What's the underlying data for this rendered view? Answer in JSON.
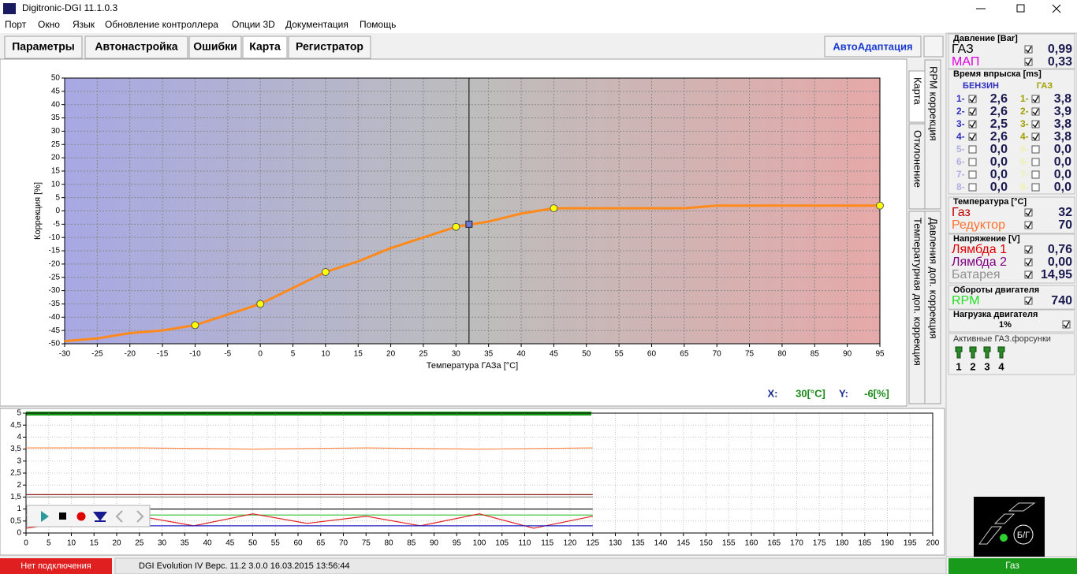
{
  "window": {
    "title": "Digitronic-DGI  11.1.0.3"
  },
  "menu": [
    "Порт",
    "Окно",
    "Язык",
    "Обновление контроллера",
    "Опции 3D",
    "Документация",
    "Помощь"
  ],
  "tabs": [
    "Параметры",
    "Автонастройка",
    "Ошибки",
    "Карта",
    "Регистратор"
  ],
  "auto_button": "АвтоАдаптация",
  "side_tabs": [
    "Карта",
    "RPM коррекция",
    "Отклонение",
    "Давления доп. коррекция",
    "Температурная доп. коррекция"
  ],
  "chart_data": [
    {
      "type": "line",
      "xlabel": "Температура ГАЗа [°C]",
      "ylabel": "Коррекция [%]",
      "xlim": [
        -30,
        95
      ],
      "ylim": [
        -50,
        50
      ],
      "xticks": [
        -30,
        -25,
        -20,
        -15,
        -10,
        -5,
        0,
        5,
        10,
        15,
        20,
        25,
        30,
        35,
        40,
        45,
        50,
        55,
        60,
        65,
        70,
        75,
        80,
        85,
        90,
        95
      ],
      "yticks": [
        -50,
        -45,
        -40,
        -35,
        -30,
        -25,
        -20,
        -15,
        -10,
        -5,
        0,
        5,
        10,
        15,
        20,
        25,
        30,
        35,
        40,
        45,
        50
      ],
      "grid": true,
      "background_colors": [
        "#a8a8e4",
        "#bdbdbd",
        "#e6a9a9"
      ],
      "series": [
        {
          "color": "#ff8a1c",
          "x": [
            -30,
            -25,
            -20,
            -15,
            -10,
            -5,
            0,
            5,
            10,
            15,
            20,
            25,
            30,
            35,
            40,
            45,
            50,
            55,
            60,
            65,
            70,
            75,
            80,
            85,
            90,
            95
          ],
          "values": [
            -49,
            -48,
            -46,
            -45,
            -43,
            -39,
            -35,
            -29,
            -23,
            -19,
            -14,
            -10,
            -6,
            -4,
            -1,
            1,
            1,
            1,
            1,
            1,
            2,
            2,
            2,
            2,
            2,
            2
          ]
        },
        {
          "color": "#ffff00",
          "marker": "circle",
          "line": false,
          "x": [
            -10,
            0,
            10,
            30,
            45,
            95
          ],
          "values": [
            -43,
            -35,
            -23,
            -6,
            1,
            2
          ]
        }
      ],
      "cursor": {
        "x": 32,
        "y": -5
      },
      "readout": [
        "X:",
        "30[°C]",
        "Y:",
        "-6[%]"
      ]
    },
    {
      "type": "line",
      "xlim": [
        0,
        200
      ],
      "ylim": [
        0,
        5
      ],
      "xticks": [
        0,
        5,
        10,
        15,
        20,
        25,
        30,
        35,
        40,
        45,
        50,
        55,
        60,
        65,
        70,
        75,
        80,
        85,
        90,
        95,
        100,
        105,
        110,
        115,
        120,
        125,
        130,
        135,
        140,
        145,
        150,
        155,
        160,
        165,
        170,
        175,
        180,
        185,
        190,
        195,
        200
      ],
      "yticks": [
        0,
        {
          "value": 0.5,
          "label": "0,5"
        },
        1,
        {
          "value": 1.5,
          "label": "1,5"
        },
        2,
        {
          "value": 2.5,
          "label": "2,5"
        },
        3,
        {
          "value": 3.5,
          "label": "3,5"
        },
        4,
        {
          "value": 4.5,
          "label": "4,5"
        },
        5
      ],
      "grid": true,
      "series": [
        {
          "color": "#ff8a4a",
          "x": [
            0,
            25,
            50,
            75,
            100,
            125
          ],
          "values": [
            3.55,
            3.55,
            3.5,
            3.55,
            3.5,
            3.55
          ]
        },
        {
          "color": "#8b1a1a",
          "x": [
            0,
            25,
            50,
            75,
            100,
            125
          ],
          "values": [
            1.6,
            1.6,
            1.6,
            1.6,
            1.6,
            1.6
          ]
        },
        {
          "color": "#909090",
          "x": [
            0,
            25,
            50,
            75,
            100,
            125
          ],
          "values": [
            1.5,
            1.5,
            1.5,
            1.5,
            1.5,
            1.5
          ]
        },
        {
          "color": "#202020",
          "x": [
            0,
            25,
            50,
            75,
            100,
            125
          ],
          "values": [
            1,
            1,
            1,
            1,
            1,
            1
          ]
        },
        {
          "color": "#30c030",
          "x": [
            0,
            25,
            50,
            75,
            100,
            125
          ],
          "values": [
            0.75,
            0.75,
            0.75,
            0.75,
            0.75,
            0.75
          ]
        },
        {
          "color": "#e02020",
          "x": [
            0,
            12,
            25,
            37,
            50,
            62,
            75,
            87,
            100,
            112,
            125
          ],
          "values": [
            0.2,
            0.5,
            0.7,
            0.3,
            0.8,
            0.4,
            0.7,
            0.3,
            0.8,
            0.2,
            0.7
          ]
        },
        {
          "color": "#2020c0",
          "x": [
            0,
            25,
            50,
            75,
            100,
            125
          ],
          "values": [
            0.3,
            0.3,
            0.3,
            0.3,
            0.3,
            0.3
          ]
        }
      ]
    }
  ],
  "side_panel": {
    "pressure": {
      "title": "Давление [Bar]",
      "rows": [
        {
          "label": "ГАЗ",
          "color": "#000000",
          "value": "0,99"
        },
        {
          "label": "МАП",
          "color": "#e000e0",
          "value": "0,33"
        }
      ]
    },
    "injection": {
      "title": "Время впрыска [ms]",
      "petrol_header": "БЕНЗИН",
      "gas_header": "ГАЗ",
      "rows": [
        {
          "petrol_label": "1-",
          "petrol": "2,6",
          "gas_label": "1-",
          "gas": "3,8",
          "checked": true
        },
        {
          "petrol_label": "2-",
          "petrol": "2,6",
          "gas_label": "2-",
          "gas": "3,9",
          "checked": true
        },
        {
          "petrol_label": "3-",
          "petrol": "2,5",
          "gas_label": "3-",
          "gas": "3,8",
          "checked": true
        },
        {
          "petrol_label": "4-",
          "petrol": "2,6",
          "gas_label": "4-",
          "gas": "3,8",
          "checked": true
        },
        {
          "petrol_label": "5-",
          "petrol": "0,0",
          "gas_label": "5-",
          "gas": "0,0",
          "checked": false
        },
        {
          "petrol_label": "6-",
          "petrol": "0,0",
          "gas_label": "6-",
          "gas": "0,0",
          "checked": false
        },
        {
          "petrol_label": "7-",
          "petrol": "0,0",
          "gas_label": "7-",
          "gas": "0,0",
          "checked": false
        },
        {
          "petrol_label": "8-",
          "petrol": "0,0",
          "gas_label": "8-",
          "gas": "0,0",
          "checked": false
        }
      ]
    },
    "temperature": {
      "title": "Температура  [°C]",
      "rows": [
        {
          "label": "Газ",
          "color": "#c00000",
          "value": "32"
        },
        {
          "label": "Редуктор",
          "color": "#ff7030",
          "value": "70"
        }
      ]
    },
    "voltage": {
      "title": "Напряжение [V]",
      "rows": [
        {
          "label": "Лямбда 1",
          "color": "#e00000",
          "value": "0,76"
        },
        {
          "label": "Лямбда 2",
          "color": "#800080",
          "value": "0,00"
        },
        {
          "label": "Батарея",
          "color": "#909090",
          "value": "14,95"
        }
      ]
    },
    "rpm": {
      "title": "Обороты двигателя",
      "rows": [
        {
          "label": "RPM",
          "color": "#20e020",
          "value": "740"
        }
      ]
    },
    "load": {
      "title": "Нагрузка двигателя",
      "value": "1%"
    },
    "injectors": {
      "title": "Активные ГАЗ.форсунки",
      "labels": [
        "1",
        "2",
        "3",
        "4"
      ]
    },
    "mode": "Б/Г"
  },
  "status_bar": {
    "connection": "Нет подключения",
    "info": "DGI Evolution IV   Верс. 11.2   3.0.0     16.03.2015 13:56:44",
    "fuel": "Газ"
  }
}
